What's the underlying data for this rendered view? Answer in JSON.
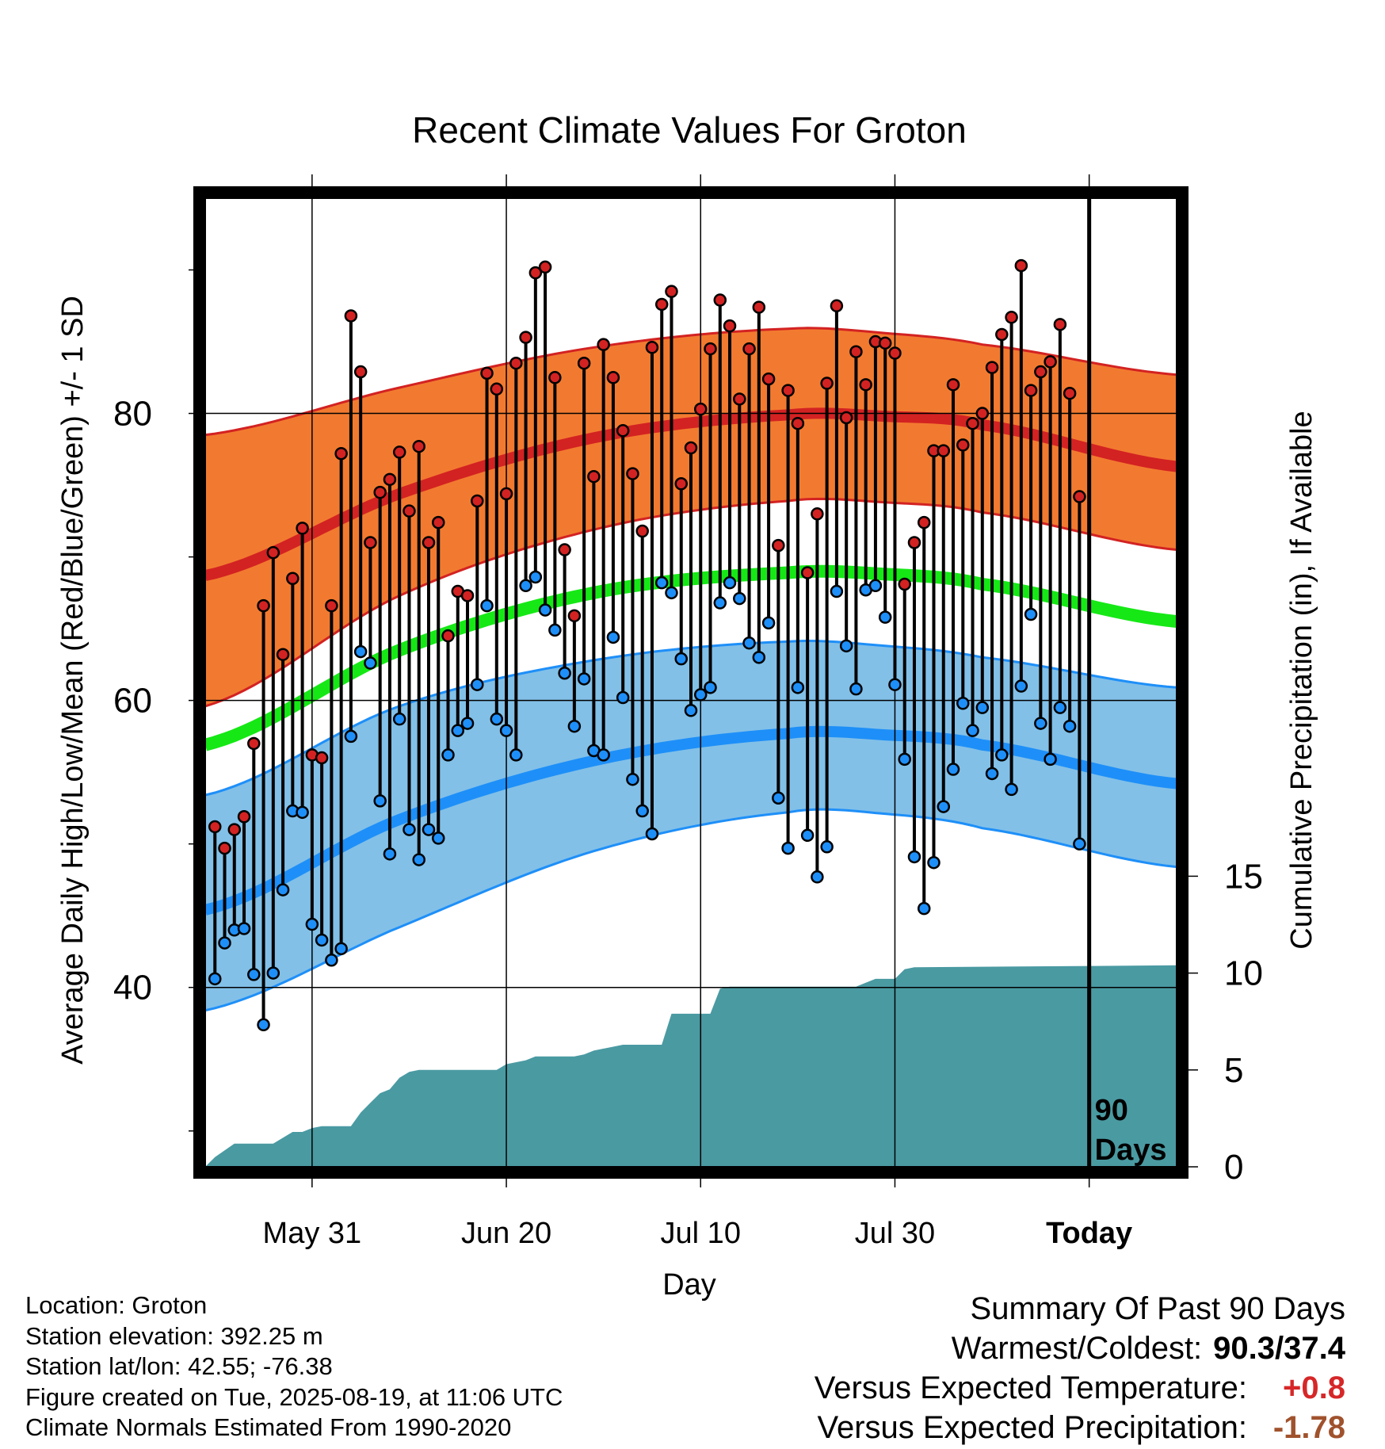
{
  "colors": {
    "high_band": "#f27a30",
    "high_mean": "#d32222",
    "low_band": "#82c0e8",
    "low_mean": "#1e8ff8",
    "mean": "#16e816",
    "precip": "#4a9aa2",
    "high_point": "#d32222",
    "low_point": "#1e8ff8"
  },
  "chart_data": {
    "type": "line",
    "title": "Recent Climate Values For Groton",
    "xlabel": "Day",
    "ylabel": "Average Daily High/Low/Mean (Red/Blue/Green) +/- 1 SD",
    "y2label": "Cumulative Precipitation (in), If Available",
    "ylim": [
      27.5,
      95
    ],
    "y2lim": [
      0,
      50
    ],
    "yticks": [
      "40",
      "60",
      "80"
    ],
    "y2ticks": [
      "0",
      "5",
      "10",
      "15"
    ],
    "xtick_labels": [
      "May 31",
      "Jun 20",
      "Jul 10",
      "Jul 30",
      "Today"
    ],
    "xtick_days": [
      11,
      31,
      51,
      71,
      91
    ],
    "days_label": "90 Days",
    "grid": true,
    "x_start_day": 0,
    "x_end_day": 100,
    "normals": {
      "days": [
        0,
        20,
        40,
        60,
        70,
        80,
        100
      ],
      "high_mean": [
        68.7,
        74.4,
        78.3,
        79.9,
        79.8,
        79.2,
        76.3
      ],
      "high_upper": [
        78.5,
        81.8,
        84.6,
        85.9,
        85.6,
        84.8,
        82.7
      ],
      "high_lower": [
        59.6,
        67.3,
        71.9,
        73.9,
        73.8,
        73.1,
        70.5
      ],
      "mean": [
        56.9,
        63.5,
        67.5,
        68.9,
        68.8,
        68.1,
        65.5
      ],
      "low_mean": [
        45.4,
        51.7,
        55.8,
        57.7,
        57.6,
        56.9,
        54.2
      ],
      "low_upper": [
        53.4,
        59.6,
        62.8,
        64.1,
        63.8,
        63.0,
        60.9
      ],
      "low_lower": [
        38.4,
        44.2,
        49.5,
        52.2,
        52.1,
        51.1,
        48.4
      ]
    },
    "series": [
      {
        "name": "High",
        "x": [
          1,
          2,
          3,
          4,
          5,
          6,
          7,
          8,
          9,
          10,
          11,
          12,
          13,
          14,
          15,
          16,
          17,
          18,
          19,
          20,
          21,
          22,
          23,
          24,
          25,
          26,
          27,
          28,
          29,
          30,
          31,
          32,
          33,
          34,
          35,
          36,
          37,
          38,
          39,
          40,
          41,
          42,
          43,
          44,
          45,
          46,
          47,
          48,
          49,
          50,
          51,
          52,
          53,
          54,
          55,
          56,
          57,
          58,
          59,
          60,
          61,
          62,
          63,
          64,
          65,
          66,
          67,
          68,
          69,
          70,
          71,
          72,
          73,
          74,
          75,
          76,
          77,
          78,
          79,
          80,
          81,
          82,
          83,
          84,
          85,
          86,
          87,
          88,
          89,
          90
        ],
        "values": [
          51.2,
          49.7,
          51.0,
          51.9,
          57.0,
          66.6,
          70.3,
          63.2,
          68.5,
          72.0,
          56.2,
          56.0,
          66.6,
          77.2,
          86.8,
          82.9,
          71.0,
          74.5,
          75.4,
          77.3,
          73.2,
          77.7,
          71.0,
          72.4,
          64.5,
          67.6,
          67.3,
          73.9,
          82.8,
          81.7,
          74.4,
          83.5,
          85.3,
          89.8,
          90.2,
          82.5,
          70.5,
          65.9,
          83.5,
          75.6,
          84.8,
          82.5,
          78.8,
          75.8,
          71.8,
          84.6,
          87.6,
          88.5,
          75.1,
          77.6,
          80.3,
          84.5,
          87.9,
          86.1,
          81.0,
          84.5,
          87.4,
          82.4,
          70.8,
          81.6,
          79.3,
          68.9,
          73.0,
          82.1,
          87.5,
          79.7,
          84.3,
          82.0,
          85.0,
          84.9,
          84.2,
          68.1,
          71.0,
          72.4,
          77.4,
          77.4,
          82.0,
          77.8,
          79.3,
          80.0,
          83.2,
          85.5,
          86.7,
          90.3,
          81.6,
          82.9,
          83.6,
          86.2,
          81.4,
          74.2
        ]
      },
      {
        "name": "Low",
        "x": [
          1,
          2,
          3,
          4,
          5,
          6,
          7,
          8,
          9,
          10,
          11,
          12,
          13,
          14,
          15,
          16,
          17,
          18,
          19,
          20,
          21,
          22,
          23,
          24,
          25,
          26,
          27,
          28,
          29,
          30,
          31,
          32,
          33,
          34,
          35,
          36,
          37,
          38,
          39,
          40,
          41,
          42,
          43,
          44,
          45,
          46,
          47,
          48,
          49,
          50,
          51,
          52,
          53,
          54,
          55,
          56,
          57,
          58,
          59,
          60,
          61,
          62,
          63,
          64,
          65,
          66,
          67,
          68,
          69,
          70,
          71,
          72,
          73,
          74,
          75,
          76,
          77,
          78,
          79,
          80,
          81,
          82,
          83,
          84,
          85,
          86,
          87,
          88,
          89,
          90
        ],
        "values": [
          40.6,
          43.1,
          44.0,
          44.1,
          40.9,
          37.4,
          41.0,
          46.8,
          52.3,
          52.2,
          44.4,
          43.3,
          41.9,
          42.7,
          57.5,
          63.4,
          62.6,
          53.0,
          49.3,
          58.7,
          51.0,
          48.9,
          51.0,
          50.4,
          56.2,
          57.9,
          58.4,
          61.1,
          66.6,
          58.7,
          57.9,
          56.2,
          68.0,
          68.6,
          66.3,
          64.9,
          61.9,
          58.2,
          61.5,
          56.5,
          56.2,
          64.4,
          60.2,
          54.5,
          52.3,
          50.7,
          68.2,
          67.5,
          62.9,
          59.3,
          60.4,
          60.9,
          66.8,
          68.2,
          67.1,
          64.0,
          63.0,
          65.4,
          53.2,
          49.7,
          60.9,
          50.6,
          47.7,
          49.8,
          67.6,
          63.8,
          60.8,
          67.7,
          68.0,
          65.8,
          61.1,
          55.9,
          49.1,
          45.5,
          48.7,
          52.6,
          55.2,
          59.8,
          57.9,
          59.5,
          54.9,
          56.2,
          53.8,
          61.0,
          66.0,
          58.4,
          55.9,
          59.5,
          58.2,
          50.0
        ]
      },
      {
        "name": "Cumulative Precipitation",
        "x": [
          0,
          1,
          3,
          4,
          6,
          7,
          9,
          10,
          11,
          12,
          13,
          14,
          15,
          16,
          17,
          18,
          19,
          20,
          21,
          22,
          30,
          31,
          33,
          34,
          38,
          39,
          40,
          41,
          43,
          44,
          47,
          48,
          49,
          52,
          53,
          54,
          67,
          68,
          69,
          70,
          71,
          72,
          73,
          100
        ],
        "values": [
          0,
          0.5,
          1.2,
          1.2,
          1.2,
          1.2,
          1.8,
          1.8,
          2.0,
          2.1,
          2.1,
          2.1,
          2.1,
          2.8,
          3.3,
          3.8,
          4.0,
          4.6,
          4.9,
          5.0,
          5.0,
          5.3,
          5.5,
          5.7,
          5.7,
          5.8,
          6.0,
          6.1,
          6.3,
          6.3,
          6.3,
          7.9,
          7.9,
          7.9,
          9.2,
          9.3,
          9.3,
          9.5,
          9.7,
          9.7,
          9.7,
          10.2,
          10.3,
          10.4
        ]
      }
    ]
  },
  "info": {
    "location": "Location: Groton",
    "elevation": "Station elevation: 392.25 m",
    "latlon": "Station lat/lon: 42.55; -76.38",
    "created": "Figure created on Tue, 2025-08-19, at 11:06 UTC",
    "normals": "Climate Normals Estimated From 1990-2020"
  },
  "summary": {
    "title": "Summary Of Past 90 Days",
    "warmest_label": "Warmest/Coldest:",
    "warmest_value": "90.3/37.4",
    "temp_label": "Versus Expected Temperature:",
    "temp_value": "+0.8",
    "precip_label": "Versus Expected Precipitation:",
    "precip_value": "-1.78"
  }
}
